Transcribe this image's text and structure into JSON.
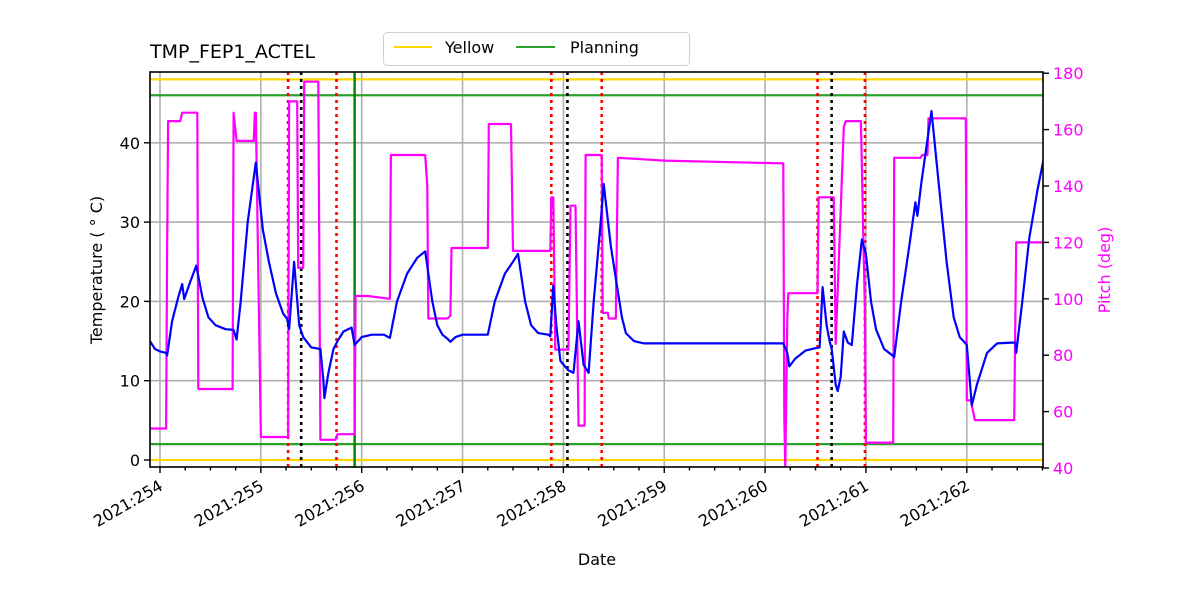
{
  "chart_data": {
    "type": "line",
    "title": "TMP_FEP1_ACTEL",
    "xlabel": "Date",
    "ylabel": "Temperature ($^\\circ$C)",
    "ylabel_display": "Temperature ( ° C)",
    "y2label": "Pitch (deg)",
    "xlim": [
      253.9,
      262.77
    ],
    "ylim": [
      -1,
      49
    ],
    "y2lim": [
      40,
      180
    ],
    "x_ticks": [
      254,
      255,
      256,
      257,
      258,
      259,
      260,
      261,
      262
    ],
    "x_tick_labels": [
      "2021:254",
      "2021:255",
      "2021:256",
      "2021:257",
      "2021:258",
      "2021:259",
      "2021:260",
      "2021:261",
      "2021:262"
    ],
    "y_ticks": [
      0,
      10,
      20,
      30,
      40
    ],
    "y2_ticks": [
      40,
      60,
      80,
      100,
      120,
      140,
      160,
      180
    ],
    "grid": true,
    "legend": {
      "position": "top center, outside plot",
      "entries": [
        {
          "label": "Yellow",
          "color": "#ffd700"
        },
        {
          "label": "Planning",
          "color": "#2ca02c"
        }
      ]
    },
    "hlines": [
      {
        "name": "Yellow",
        "y": 48,
        "color": "#ffd700"
      },
      {
        "name": "Yellow",
        "y": 0,
        "color": "#ffd700"
      },
      {
        "name": "Planning",
        "y": 46,
        "color": "#2ca02c"
      },
      {
        "name": "Planning",
        "y": 2,
        "color": "#2ca02c"
      }
    ],
    "vlines": [
      {
        "x": 255.27,
        "color": "#ff0000",
        "style": "dotted"
      },
      {
        "x": 255.4,
        "color": "#000000",
        "style": "dotted"
      },
      {
        "x": 255.75,
        "color": "#ff0000",
        "style": "dotted"
      },
      {
        "x": 255.93,
        "color": "#008000",
        "style": "solid"
      },
      {
        "x": 257.88,
        "color": "#ff0000",
        "style": "dotted"
      },
      {
        "x": 258.04,
        "color": "#000000",
        "style": "dotted"
      },
      {
        "x": 258.38,
        "color": "#ff0000",
        "style": "dotted"
      },
      {
        "x": 260.52,
        "color": "#ff0000",
        "style": "dotted"
      },
      {
        "x": 260.66,
        "color": "#000000",
        "style": "dotted"
      },
      {
        "x": 260.99,
        "color": "#ff0000",
        "style": "dotted"
      }
    ],
    "series": [
      {
        "name": "TMP_FEP1_ACTEL",
        "axis": "left",
        "color": "#0000ff",
        "points": [
          [
            253.9,
            15.0
          ],
          [
            253.95,
            14.0
          ],
          [
            254.0,
            13.7
          ],
          [
            254.06,
            13.5
          ],
          [
            254.07,
            13.2
          ],
          [
            254.12,
            17.5
          ],
          [
            254.18,
            20.5
          ],
          [
            254.22,
            22.2
          ],
          [
            254.24,
            20.3
          ],
          [
            254.3,
            22.5
          ],
          [
            254.36,
            24.5
          ],
          [
            254.42,
            20.5
          ],
          [
            254.48,
            18.0
          ],
          [
            254.55,
            17.0
          ],
          [
            254.65,
            16.5
          ],
          [
            254.73,
            16.4
          ],
          [
            254.76,
            15.2
          ],
          [
            254.8,
            20.0
          ],
          [
            254.87,
            30.0
          ],
          [
            254.95,
            37.5
          ],
          [
            255.02,
            29.0
          ],
          [
            255.08,
            25.0
          ],
          [
            255.15,
            21.0
          ],
          [
            255.22,
            18.5
          ],
          [
            255.26,
            17.8
          ],
          [
            255.28,
            16.5
          ],
          [
            255.33,
            25.0
          ],
          [
            255.38,
            17.0
          ],
          [
            255.42,
            15.5
          ],
          [
            255.5,
            14.2
          ],
          [
            255.59,
            14.0
          ],
          [
            255.62,
            10.0
          ],
          [
            255.63,
            7.8
          ],
          [
            255.67,
            11.0
          ],
          [
            255.72,
            14.0
          ],
          [
            255.76,
            15.0
          ],
          [
            255.82,
            16.2
          ],
          [
            255.9,
            16.7
          ],
          [
            255.93,
            14.5
          ],
          [
            256.0,
            15.5
          ],
          [
            256.1,
            15.8
          ],
          [
            256.22,
            15.8
          ],
          [
            256.28,
            15.4
          ],
          [
            256.35,
            20.0
          ],
          [
            256.45,
            23.5
          ],
          [
            256.55,
            25.5
          ],
          [
            256.63,
            26.3
          ],
          [
            256.7,
            20.0
          ],
          [
            256.75,
            17.0
          ],
          [
            256.8,
            15.8
          ],
          [
            256.85,
            15.3
          ],
          [
            256.88,
            14.9
          ],
          [
            256.93,
            15.5
          ],
          [
            257.0,
            15.8
          ],
          [
            257.1,
            15.8
          ],
          [
            257.25,
            15.8
          ],
          [
            257.32,
            20.0
          ],
          [
            257.42,
            23.5
          ],
          [
            257.5,
            25.0
          ],
          [
            257.55,
            26.0
          ],
          [
            257.62,
            20.0
          ],
          [
            257.68,
            17.0
          ],
          [
            257.75,
            16.0
          ],
          [
            257.85,
            15.8
          ],
          [
            257.87,
            15.6
          ],
          [
            257.9,
            22.0
          ],
          [
            257.93,
            17.0
          ],
          [
            257.97,
            12.5
          ],
          [
            258.05,
            11.3
          ],
          [
            258.1,
            11.0
          ],
          [
            258.15,
            17.5
          ],
          [
            258.2,
            12.0
          ],
          [
            258.25,
            11.0
          ],
          [
            258.3,
            20.0
          ],
          [
            258.37,
            30.0
          ],
          [
            258.4,
            34.8
          ],
          [
            258.47,
            27.0
          ],
          [
            258.53,
            22.0
          ],
          [
            258.58,
            18.0
          ],
          [
            258.62,
            16.0
          ],
          [
            258.7,
            15.0
          ],
          [
            258.8,
            14.7
          ],
          [
            259.0,
            14.7
          ],
          [
            259.5,
            14.7
          ],
          [
            260.0,
            14.7
          ],
          [
            260.18,
            14.7
          ],
          [
            260.22,
            13.5
          ],
          [
            260.24,
            11.8
          ],
          [
            260.3,
            12.8
          ],
          [
            260.4,
            13.8
          ],
          [
            260.5,
            14.1
          ],
          [
            260.54,
            14.2
          ],
          [
            260.57,
            21.8
          ],
          [
            260.61,
            17.0
          ],
          [
            260.64,
            15.0
          ],
          [
            260.66,
            14.0
          ],
          [
            260.7,
            9.5
          ],
          [
            260.72,
            8.7
          ],
          [
            260.75,
            10.5
          ],
          [
            260.78,
            16.2
          ],
          [
            260.82,
            14.8
          ],
          [
            260.86,
            14.5
          ],
          [
            260.91,
            22.0
          ],
          [
            260.96,
            27.8
          ],
          [
            261.0,
            26.0
          ],
          [
            261.05,
            20.0
          ],
          [
            261.1,
            16.5
          ],
          [
            261.18,
            14.0
          ],
          [
            261.25,
            13.3
          ],
          [
            261.28,
            13.0
          ],
          [
            261.35,
            20.0
          ],
          [
            261.43,
            27.0
          ],
          [
            261.49,
            32.5
          ],
          [
            261.51,
            30.8
          ],
          [
            261.55,
            35.0
          ],
          [
            261.65,
            44.0
          ],
          [
            261.72,
            35.0
          ],
          [
            261.8,
            25.0
          ],
          [
            261.87,
            18.0
          ],
          [
            261.93,
            15.5
          ],
          [
            261.98,
            14.8
          ],
          [
            262.0,
            14.5
          ],
          [
            262.03,
            10.0
          ],
          [
            262.05,
            6.9
          ],
          [
            262.1,
            9.5
          ],
          [
            262.2,
            13.5
          ],
          [
            262.3,
            14.7
          ],
          [
            262.45,
            14.8
          ],
          [
            262.48,
            14.8
          ],
          [
            262.49,
            13.5
          ],
          [
            262.55,
            20.0
          ],
          [
            262.62,
            28.0
          ],
          [
            262.7,
            34.0
          ],
          [
            262.77,
            38.5
          ]
        ]
      },
      {
        "name": "Pitch",
        "axis": "right",
        "color": "#ff00ff",
        "points": [
          [
            253.9,
            54
          ],
          [
            254.06,
            54
          ],
          [
            254.07,
            116
          ],
          [
            254.08,
            163
          ],
          [
            254.2,
            163
          ],
          [
            254.22,
            166
          ],
          [
            254.37,
            166
          ],
          [
            254.38,
            68
          ],
          [
            254.72,
            68
          ],
          [
            254.73,
            166
          ],
          [
            254.76,
            156
          ],
          [
            254.93,
            156
          ],
          [
            254.94,
            166
          ],
          [
            254.95,
            166
          ],
          [
            255.0,
            51
          ],
          [
            255.27,
            51
          ],
          [
            255.28,
            170
          ],
          [
            255.36,
            170
          ],
          [
            255.37,
            111
          ],
          [
            255.42,
            111
          ],
          [
            255.43,
            177
          ],
          [
            255.57,
            177
          ],
          [
            255.59,
            50
          ],
          [
            255.74,
            50
          ],
          [
            255.76,
            52
          ],
          [
            255.9,
            52
          ],
          [
            255.93,
            52
          ],
          [
            255.94,
            101
          ],
          [
            256.06,
            101
          ],
          [
            256.28,
            100
          ],
          [
            256.29,
            151
          ],
          [
            256.63,
            151
          ],
          [
            256.65,
            140
          ],
          [
            256.66,
            93
          ],
          [
            256.85,
            93
          ],
          [
            256.88,
            94
          ],
          [
            256.89,
            118
          ],
          [
            257.25,
            118
          ],
          [
            257.26,
            162
          ],
          [
            257.48,
            162
          ],
          [
            257.5,
            117
          ],
          [
            257.87,
            117
          ],
          [
            257.88,
            136
          ],
          [
            257.9,
            136
          ],
          [
            257.92,
            82
          ],
          [
            258.05,
            82
          ],
          [
            258.07,
            133
          ],
          [
            258.12,
            133
          ],
          [
            258.15,
            55
          ],
          [
            258.21,
            55
          ],
          [
            258.22,
            151
          ],
          [
            258.38,
            151
          ],
          [
            258.39,
            95
          ],
          [
            258.44,
            95
          ],
          [
            258.45,
            93
          ],
          [
            258.52,
            93
          ],
          [
            258.54,
            150
          ],
          [
            259.0,
            149
          ],
          [
            260.18,
            148
          ],
          [
            260.19,
            58
          ],
          [
            260.2,
            40
          ],
          [
            260.22,
            93
          ],
          [
            260.23,
            102
          ],
          [
            260.52,
            102
          ],
          [
            260.53,
            136
          ],
          [
            260.68,
            136
          ],
          [
            260.7,
            84
          ],
          [
            260.78,
            161
          ],
          [
            260.8,
            163
          ],
          [
            260.95,
            163
          ],
          [
            260.99,
            96
          ],
          [
            261.0,
            49
          ],
          [
            261.27,
            49
          ],
          [
            261.28,
            150
          ],
          [
            261.54,
            150
          ],
          [
            261.56,
            151
          ],
          [
            261.61,
            151
          ],
          [
            261.62,
            164
          ],
          [
            261.99,
            164
          ],
          [
            262.0,
            64
          ],
          [
            262.04,
            64
          ],
          [
            262.08,
            57
          ],
          [
            262.47,
            57
          ],
          [
            262.49,
            120
          ],
          [
            262.77,
            120
          ]
        ]
      }
    ]
  }
}
